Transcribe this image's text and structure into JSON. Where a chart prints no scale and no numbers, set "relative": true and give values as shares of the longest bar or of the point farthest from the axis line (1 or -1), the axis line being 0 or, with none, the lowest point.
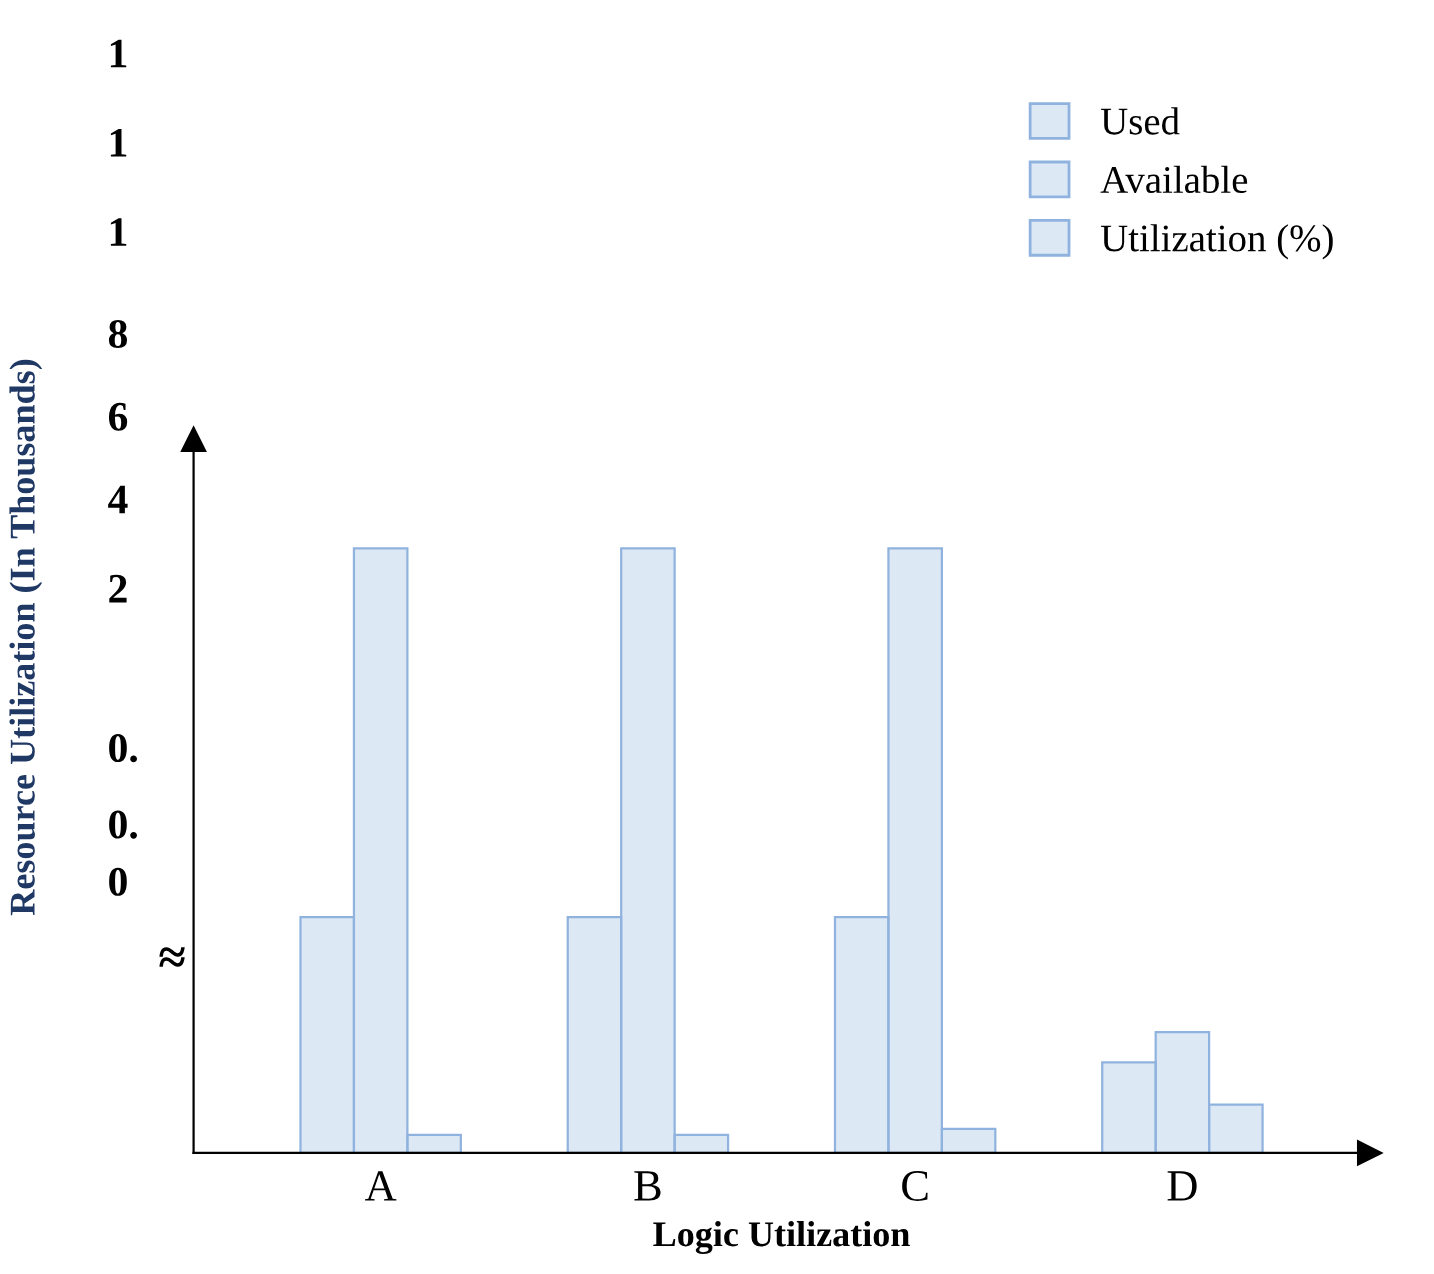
{
  "chart_data": {
    "type": "bar",
    "relative": true,
    "xlabel": "Logic Utilization",
    "ylabel": "Resource Utilization (In Thousands)",
    "categories": [
      "A",
      "B",
      "C",
      "D"
    ],
    "series": [
      {
        "name": "Used",
        "color": "#8fb3de",
        "values": [
          0.39,
          0.39,
          0.39,
          0.15
        ]
      },
      {
        "name": "Available",
        "color": "#8fb3de",
        "values": [
          1,
          1,
          1,
          0.2
        ]
      },
      {
        "name": "Utilization (%)",
        "color": "#8fb3de",
        "values": [
          0.03,
          0.03,
          0.04,
          0.08
        ]
      }
    ],
    "annotations": [
      "1",
      "1",
      "1",
      "8",
      "6",
      "4",
      "2",
      "0.",
      "0.",
      "0",
      "≈"
    ],
    "legend": "top right",
    "grid": false
  }
}
